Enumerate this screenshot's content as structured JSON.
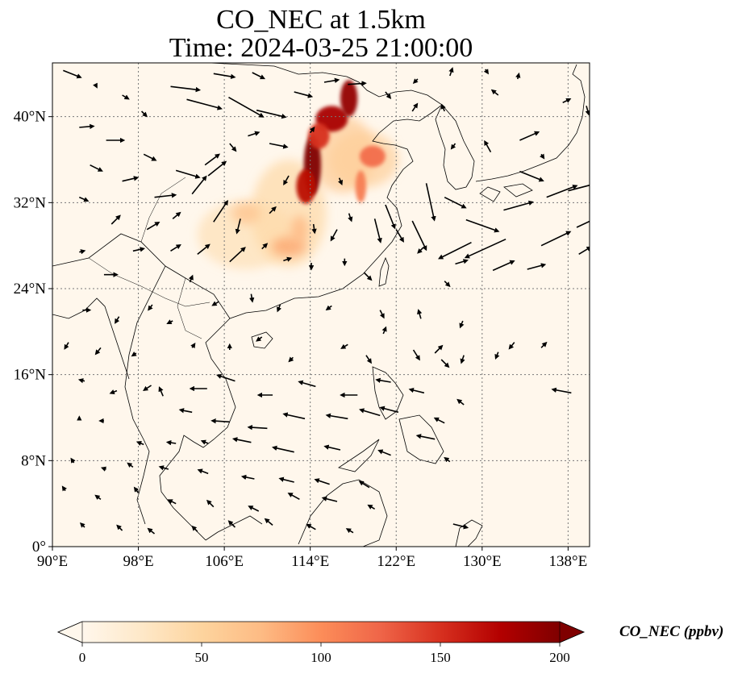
{
  "title": {
    "line1": "CO_NEC at 1.5km",
    "line2": "Time: 2024-03-25 21:00:00"
  },
  "map": {
    "projection": "PlateCarree",
    "lon_range": [
      90,
      140
    ],
    "lat_range": [
      0,
      45
    ],
    "gridlines": "dotted",
    "lon_ticks": [
      {
        "value": 90,
        "label": "90°E"
      },
      {
        "value": 98,
        "label": "98°E"
      },
      {
        "value": 106,
        "label": "106°E"
      },
      {
        "value": 114,
        "label": "114°E"
      },
      {
        "value": 122,
        "label": "122°E"
      },
      {
        "value": 130,
        "label": "130°E"
      },
      {
        "value": 138,
        "label": "138°E"
      }
    ],
    "lat_ticks": [
      {
        "value": 0,
        "label": "0°"
      },
      {
        "value": 8,
        "label": "8°N"
      },
      {
        "value": 16,
        "label": "16°N"
      },
      {
        "value": 24,
        "label": "24°N"
      },
      {
        "value": 32,
        "label": "32°N"
      },
      {
        "value": 40,
        "label": "40°N"
      }
    ],
    "plumes": [
      {
        "lon": 108,
        "lat": 29,
        "rx": 4.5,
        "ry": 3.2,
        "ppbv": 35
      },
      {
        "lon": 112,
        "lat": 31,
        "rx": 3.5,
        "ry": 5,
        "ppbv": 45
      },
      {
        "lon": 117,
        "lat": 36.5,
        "rx": 3,
        "ry": 3.6,
        "ppbv": 60
      },
      {
        "lon": 119,
        "lat": 36,
        "rx": 3.2,
        "ry": 2.6,
        "ppbv": 55
      },
      {
        "lon": 114.2,
        "lat": 35.5,
        "rx": 0.8,
        "ry": 2.8,
        "ppbv": 200
      },
      {
        "lon": 113.6,
        "lat": 33.5,
        "rx": 0.9,
        "ry": 1.6,
        "ppbv": 170
      },
      {
        "lon": 116,
        "lat": 39.8,
        "rx": 1.5,
        "ry": 1.2,
        "ppbv": 180
      },
      {
        "lon": 117.6,
        "lat": 41.7,
        "rx": 0.8,
        "ry": 1.7,
        "ppbv": 190
      },
      {
        "lon": 114.8,
        "lat": 38.2,
        "rx": 1,
        "ry": 1.2,
        "ppbv": 150
      },
      {
        "lon": 119.8,
        "lat": 36.3,
        "rx": 1.2,
        "ry": 1,
        "ppbv": 120
      },
      {
        "lon": 118.7,
        "lat": 33.5,
        "rx": 0.5,
        "ry": 1.5,
        "ppbv": 110
      },
      {
        "lon": 112,
        "lat": 27.9,
        "rx": 1.6,
        "ry": 0.9,
        "ppbv": 90
      },
      {
        "lon": 113,
        "lat": 29.5,
        "rx": 0.8,
        "ry": 1.3,
        "ppbv": 80
      },
      {
        "lon": 108,
        "lat": 31,
        "rx": 1.3,
        "ry": 1,
        "ppbv": 70
      }
    ],
    "wind_vectors": [
      {
        "lon": 91,
        "lat": 44.3,
        "u": 1.5,
        "v": -0.6
      },
      {
        "lon": 94,
        "lat": 43,
        "u": 0.1,
        "v": -0.2
      },
      {
        "lon": 96.5,
        "lat": 42,
        "u": 0.5,
        "v": -0.3
      },
      {
        "lon": 98.3,
        "lat": 40.5,
        "u": 0.4,
        "v": -0.4
      },
      {
        "lon": 101,
        "lat": 42.8,
        "u": 2.5,
        "v": -0.3
      },
      {
        "lon": 102.5,
        "lat": 41.6,
        "u": 3,
        "v": -0.8
      },
      {
        "lon": 105,
        "lat": 44,
        "u": 1.8,
        "v": -0.3
      },
      {
        "lon": 108.6,
        "lat": 44.1,
        "u": 1,
        "v": -0.5
      },
      {
        "lon": 106.4,
        "lat": 41.8,
        "u": 3,
        "v": -1.7
      },
      {
        "lon": 109,
        "lat": 40.6,
        "u": 2.5,
        "v": -0.6
      },
      {
        "lon": 112.5,
        "lat": 42.3,
        "u": 1.5,
        "v": -0.4
      },
      {
        "lon": 115.3,
        "lat": 43.2,
        "u": 1.2,
        "v": 0.2
      },
      {
        "lon": 117.5,
        "lat": 43,
        "u": 1.5,
        "v": 0.1
      },
      {
        "lon": 92.5,
        "lat": 39,
        "u": 1.2,
        "v": 0.1
      },
      {
        "lon": 95,
        "lat": 37.8,
        "u": 1.5,
        "v": 0
      },
      {
        "lon": 98.5,
        "lat": 36.5,
        "u": 1,
        "v": -0.5
      },
      {
        "lon": 101.5,
        "lat": 35,
        "u": 2,
        "v": -0.6
      },
      {
        "lon": 104.2,
        "lat": 35.5,
        "u": 1.2,
        "v": 0.9
      },
      {
        "lon": 104.5,
        "lat": 34.5,
        "u": 1.5,
        "v": 1.2
      },
      {
        "lon": 106.5,
        "lat": 37.5,
        "u": 0.5,
        "v": -0.6
      },
      {
        "lon": 108.2,
        "lat": 38.2,
        "u": 0.9,
        "v": 0.3
      },
      {
        "lon": 110.2,
        "lat": 37.5,
        "u": 1.5,
        "v": -0.3
      },
      {
        "lon": 93.5,
        "lat": 35.5,
        "u": 1,
        "v": -0.5
      },
      {
        "lon": 96.5,
        "lat": 34,
        "u": 1.3,
        "v": 0.3
      },
      {
        "lon": 99.5,
        "lat": 32.5,
        "u": 1.8,
        "v": 0.2
      },
      {
        "lon": 103,
        "lat": 32.8,
        "u": 1.2,
        "v": 1.5
      },
      {
        "lon": 105,
        "lat": 30.2,
        "u": 1.2,
        "v": 1.8
      },
      {
        "lon": 101.2,
        "lat": 30.5,
        "u": 0.6,
        "v": 0.5
      },
      {
        "lon": 92.5,
        "lat": 32.5,
        "u": 0.7,
        "v": -0.3
      },
      {
        "lon": 95.5,
        "lat": 30,
        "u": 0.7,
        "v": 0.7
      },
      {
        "lon": 98.8,
        "lat": 29.5,
        "u": 1,
        "v": 0.6
      },
      {
        "lon": 107.5,
        "lat": 30.5,
        "u": -0.3,
        "v": -1.2
      },
      {
        "lon": 110.2,
        "lat": 31,
        "u": 0.5,
        "v": 0.5
      },
      {
        "lon": 117.6,
        "lat": 31,
        "u": 0.2,
        "v": -0.6
      },
      {
        "lon": 120,
        "lat": 30.5,
        "u": 0.5,
        "v": -2
      },
      {
        "lon": 122,
        "lat": 29.5,
        "u": 0.6,
        "v": -1
      },
      {
        "lon": 123.5,
        "lat": 30.3,
        "u": 1.2,
        "v": -2.5
      },
      {
        "lon": 121,
        "lat": 31.8,
        "u": 0.8,
        "v": -2
      },
      {
        "lon": 124.8,
        "lat": 33.8,
        "u": 0.7,
        "v": -3.2
      },
      {
        "lon": 126.5,
        "lat": 32.5,
        "u": 1.8,
        "v": -0.9
      },
      {
        "lon": 128.5,
        "lat": 30.4,
        "u": 2.8,
        "v": -1
      },
      {
        "lon": 129,
        "lat": 28.3,
        "u": -2.8,
        "v": -1.4
      },
      {
        "lon": 132.2,
        "lat": 28.6,
        "u": -3.5,
        "v": -1.6
      },
      {
        "lon": 132,
        "lat": 31.3,
        "u": 2.5,
        "v": 0.7
      },
      {
        "lon": 136,
        "lat": 32.5,
        "u": 2.6,
        "v": 1
      },
      {
        "lon": 138,
        "lat": 33.1,
        "u": 2.7,
        "v": 0.7
      },
      {
        "lon": 133.5,
        "lat": 34.9,
        "u": 2,
        "v": -0.8
      },
      {
        "lon": 135.5,
        "lat": 28,
        "u": 2.5,
        "v": 1.2
      },
      {
        "lon": 138.8,
        "lat": 29.7,
        "u": 1.5,
        "v": 0.7
      },
      {
        "lon": 139,
        "lat": 27.2,
        "u": 1,
        "v": 0.6
      },
      {
        "lon": 131,
        "lat": 25.7,
        "u": 1.8,
        "v": 0.8
      },
      {
        "lon": 134.2,
        "lat": 25.8,
        "u": 1.5,
        "v": 0.4
      },
      {
        "lon": 127.5,
        "lat": 26.3,
        "u": 1,
        "v": 0.3
      },
      {
        "lon": 124.5,
        "lat": 27.8,
        "u": -0.4,
        "v": -0.4
      },
      {
        "lon": 126.5,
        "lat": 24.7,
        "u": 0.4,
        "v": -0.4
      },
      {
        "lon": 130.8,
        "lat": 36.7,
        "u": -0.5,
        "v": 0.9
      },
      {
        "lon": 133.5,
        "lat": 37.8,
        "u": 1.6,
        "v": 0.7
      },
      {
        "lon": 135.5,
        "lat": 36.5,
        "u": 0.2,
        "v": -0.3
      },
      {
        "lon": 137.5,
        "lat": 41.3,
        "u": 0.6,
        "v": 0.3
      },
      {
        "lon": 139.7,
        "lat": 41,
        "u": 0.2,
        "v": -0.7
      },
      {
        "lon": 127.5,
        "lat": 37.5,
        "u": -0.3,
        "v": -0.4
      },
      {
        "lon": 131.5,
        "lat": 42,
        "u": -0.5,
        "v": 0.4
      },
      {
        "lon": 126.5,
        "lat": 40.5,
        "u": -0.2,
        "v": 0.5
      },
      {
        "lon": 123.5,
        "lat": 40.5,
        "u": 0.4,
        "v": 0.6
      },
      {
        "lon": 121,
        "lat": 42.3,
        "u": 0.4,
        "v": -0.5
      },
      {
        "lon": 124,
        "lat": 43.5,
        "u": -0.3,
        "v": -0.3
      },
      {
        "lon": 127,
        "lat": 43.8,
        "u": 0.2,
        "v": 0.6
      },
      {
        "lon": 130.3,
        "lat": 44.4,
        "u": 0.2,
        "v": -0.3
      },
      {
        "lon": 133.3,
        "lat": 43.5,
        "u": 0.1,
        "v": 0.4
      },
      {
        "lon": 114,
        "lat": 38.5,
        "u": 0.3,
        "v": 0.4
      },
      {
        "lon": 112,
        "lat": 34.5,
        "u": -0.4,
        "v": -0.7
      },
      {
        "lon": 116.7,
        "lat": 34.3,
        "u": 0.2,
        "v": -0.5
      },
      {
        "lon": 114.3,
        "lat": 30,
        "u": 0.1,
        "v": -0.7
      },
      {
        "lon": 116.5,
        "lat": 29.5,
        "u": -0.5,
        "v": -0.9
      },
      {
        "lon": 106.5,
        "lat": 26.5,
        "u": 1.3,
        "v": 1.2
      },
      {
        "lon": 103.5,
        "lat": 27.2,
        "u": 1,
        "v": 0.8
      },
      {
        "lon": 101,
        "lat": 27.5,
        "u": 0.8,
        "v": 0.5
      },
      {
        "lon": 97.5,
        "lat": 27.5,
        "u": 0.9,
        "v": 0.2
      },
      {
        "lon": 94.8,
        "lat": 25.3,
        "u": 1.1,
        "v": 0
      },
      {
        "lon": 92.5,
        "lat": 27.4,
        "u": 0.4,
        "v": 0.1
      },
      {
        "lon": 109.5,
        "lat": 27.7,
        "u": 0.4,
        "v": 0.4
      },
      {
        "lon": 111.5,
        "lat": 26.6,
        "u": 0.6,
        "v": 0.2
      },
      {
        "lon": 114.1,
        "lat": 26.4,
        "u": 0,
        "v": -0.5
      },
      {
        "lon": 117.2,
        "lat": 26.8,
        "u": 0,
        "v": -0.5
      },
      {
        "lon": 119,
        "lat": 25.5,
        "u": 0.6,
        "v": -0.6
      },
      {
        "lon": 102.8,
        "lat": 24.6,
        "u": 0.2,
        "v": 0.5
      },
      {
        "lon": 105.5,
        "lat": 22.8,
        "u": -0.5,
        "v": -0.3
      },
      {
        "lon": 108.5,
        "lat": 23.5,
        "u": 0.1,
        "v": -0.6
      },
      {
        "lon": 111.2,
        "lat": 22.5,
        "u": -0.2,
        "v": -0.5
      },
      {
        "lon": 116,
        "lat": 22.4,
        "u": -0.4,
        "v": -0.3
      },
      {
        "lon": 120.5,
        "lat": 22,
        "u": 0.3,
        "v": -0.6
      },
      {
        "lon": 124.3,
        "lat": 21.2,
        "u": -0.2,
        "v": 0.7
      },
      {
        "lon": 128.2,
        "lat": 21,
        "u": -0.2,
        "v": -0.5
      },
      {
        "lon": 92.8,
        "lat": 22,
        "u": 0.6,
        "v": 0
      },
      {
        "lon": 96.2,
        "lat": 21.4,
        "u": -0.3,
        "v": -0.5
      },
      {
        "lon": 99.3,
        "lat": 22.5,
        "u": -0.3,
        "v": -0.4
      },
      {
        "lon": 101.2,
        "lat": 21,
        "u": -0.4,
        "v": -0.2
      },
      {
        "lon": 94.5,
        "lat": 18.5,
        "u": -0.4,
        "v": -0.5
      },
      {
        "lon": 97.8,
        "lat": 18,
        "u": -0.3,
        "v": -0.2
      },
      {
        "lon": 103,
        "lat": 18.5,
        "u": 0.2,
        "v": 0.3
      },
      {
        "lon": 106.5,
        "lat": 18.3,
        "u": 0,
        "v": 0.4
      },
      {
        "lon": 109.5,
        "lat": 19.5,
        "u": -0.4,
        "v": -0.3
      },
      {
        "lon": 112.4,
        "lat": 17.6,
        "u": -0.3,
        "v": -0.3
      },
      {
        "lon": 117.5,
        "lat": 18.8,
        "u": -0.5,
        "v": -0.3
      },
      {
        "lon": 119.2,
        "lat": 17.8,
        "u": 0.4,
        "v": -0.6
      },
      {
        "lon": 120.8,
        "lat": 19.8,
        "u": 0.2,
        "v": 0.5
      },
      {
        "lon": 123.6,
        "lat": 18.3,
        "u": 0.5,
        "v": -0.8
      },
      {
        "lon": 125.6,
        "lat": 18,
        "u": 0.6,
        "v": 0.6
      },
      {
        "lon": 126.2,
        "lat": 17.4,
        "u": 0.6,
        "v": -0.6
      },
      {
        "lon": 128.3,
        "lat": 17.8,
        "u": -0.2,
        "v": -0.6
      },
      {
        "lon": 131.5,
        "lat": 18.1,
        "u": -0.2,
        "v": -0.5
      },
      {
        "lon": 133,
        "lat": 19,
        "u": -0.4,
        "v": -0.5
      },
      {
        "lon": 135.5,
        "lat": 18.5,
        "u": 0.4,
        "v": 0.4
      },
      {
        "lon": 91.5,
        "lat": 19,
        "u": -0.3,
        "v": -0.5
      },
      {
        "lon": 93,
        "lat": 15.4,
        "u": -0.4,
        "v": 0.1
      },
      {
        "lon": 96,
        "lat": 14.5,
        "u": -0.5,
        "v": -0.2
      },
      {
        "lon": 99.2,
        "lat": 15,
        "u": -0.6,
        "v": -0.4
      },
      {
        "lon": 100.3,
        "lat": 14,
        "u": -0.3,
        "v": 0.7
      },
      {
        "lon": 104.4,
        "lat": 14.7,
        "u": -1.4,
        "v": 0
      },
      {
        "lon": 107,
        "lat": 15.4,
        "u": -1.5,
        "v": 0.5
      },
      {
        "lon": 110.5,
        "lat": 14.1,
        "u": -1.2,
        "v": 0
      },
      {
        "lon": 114.5,
        "lat": 14.9,
        "u": -1.4,
        "v": 0.4
      },
      {
        "lon": 118.4,
        "lat": 14.1,
        "u": -1.4,
        "v": 0
      },
      {
        "lon": 121.5,
        "lat": 15.3,
        "u": -1.2,
        "v": 0.2
      },
      {
        "lon": 124.6,
        "lat": 14.3,
        "u": -1.2,
        "v": 0.3
      },
      {
        "lon": 128.3,
        "lat": 13.2,
        "u": -0.5,
        "v": 0.4
      },
      {
        "lon": 138.3,
        "lat": 14.3,
        "u": -1.6,
        "v": 0.3
      },
      {
        "lon": 103,
        "lat": 12.5,
        "u": -1,
        "v": 0.2
      },
      {
        "lon": 106.5,
        "lat": 11.6,
        "u": -1.5,
        "v": 0.1
      },
      {
        "lon": 110,
        "lat": 11,
        "u": -1.6,
        "v": 0.1
      },
      {
        "lon": 113.5,
        "lat": 11.9,
        "u": -1.8,
        "v": 0.4
      },
      {
        "lon": 117.5,
        "lat": 11.9,
        "u": -1.8,
        "v": 0.3
      },
      {
        "lon": 120.5,
        "lat": 12.2,
        "u": -1.7,
        "v": 0.5
      },
      {
        "lon": 122.2,
        "lat": 12.5,
        "u": -1.5,
        "v": 0.4
      },
      {
        "lon": 125.6,
        "lat": 10,
        "u": -1.5,
        "v": 0.3
      },
      {
        "lon": 126.5,
        "lat": 11.5,
        "u": -0.8,
        "v": 0.4
      },
      {
        "lon": 94.8,
        "lat": 11.7,
        "u": -0.3,
        "v": 0
      },
      {
        "lon": 92.5,
        "lat": 11.8,
        "u": 0,
        "v": 0.2
      },
      {
        "lon": 98.5,
        "lat": 9.5,
        "u": -0.5,
        "v": 0.2
      },
      {
        "lon": 101.5,
        "lat": 9.6,
        "u": -0.7,
        "v": 0.1
      },
      {
        "lon": 104.5,
        "lat": 9.6,
        "u": -0.5,
        "v": 0.2
      },
      {
        "lon": 108.5,
        "lat": 9.7,
        "u": -1.5,
        "v": 0.3
      },
      {
        "lon": 112.5,
        "lat": 8.8,
        "u": -1.8,
        "v": 0.4
      },
      {
        "lon": 116.8,
        "lat": 9,
        "u": -1.3,
        "v": 0.3
      },
      {
        "lon": 121.5,
        "lat": 8.5,
        "u": -1,
        "v": 0.4
      },
      {
        "lon": 127,
        "lat": 7.9,
        "u": -0.4,
        "v": 0.3
      },
      {
        "lon": 92,
        "lat": 7.8,
        "u": -0.2,
        "v": 0.3
      },
      {
        "lon": 95,
        "lat": 7.2,
        "u": -0.3,
        "v": 0.1
      },
      {
        "lon": 97.5,
        "lat": 7.4,
        "u": -0.4,
        "v": 0.3
      },
      {
        "lon": 100.8,
        "lat": 7.2,
        "u": -0.7,
        "v": 0.2
      },
      {
        "lon": 104.5,
        "lat": 6.8,
        "u": -0.8,
        "v": 0.3
      },
      {
        "lon": 108.8,
        "lat": 6.3,
        "u": -1,
        "v": 0.2
      },
      {
        "lon": 112.5,
        "lat": 6,
        "u": -1.2,
        "v": 0.3
      },
      {
        "lon": 115.8,
        "lat": 5.8,
        "u": -1.2,
        "v": 0.4
      },
      {
        "lon": 119.5,
        "lat": 5.5,
        "u": -0.8,
        "v": 0.5
      },
      {
        "lon": 91.2,
        "lat": 5.2,
        "u": -0.2,
        "v": 0.3
      },
      {
        "lon": 94.5,
        "lat": 4.4,
        "u": -0.4,
        "v": 0.3
      },
      {
        "lon": 98,
        "lat": 5,
        "u": -0.3,
        "v": 0.4
      },
      {
        "lon": 101.5,
        "lat": 4,
        "u": -0.6,
        "v": 0.3
      },
      {
        "lon": 105,
        "lat": 3.7,
        "u": -0.5,
        "v": 0.5
      },
      {
        "lon": 109.2,
        "lat": 3.3,
        "u": -0.8,
        "v": 0.4
      },
      {
        "lon": 113,
        "lat": 4.4,
        "u": -0.9,
        "v": 0.5
      },
      {
        "lon": 116.5,
        "lat": 4.2,
        "u": -1.2,
        "v": 0.3
      },
      {
        "lon": 120,
        "lat": 3.5,
        "u": -0.5,
        "v": 0.3
      },
      {
        "lon": 93,
        "lat": 1.8,
        "u": -0.3,
        "v": 0.3
      },
      {
        "lon": 96.5,
        "lat": 1.5,
        "u": -0.4,
        "v": 0.4
      },
      {
        "lon": 99.5,
        "lat": 1.2,
        "u": -0.5,
        "v": 0.4
      },
      {
        "lon": 103.5,
        "lat": 1.4,
        "u": -0.4,
        "v": 0.4
      },
      {
        "lon": 107,
        "lat": 1.8,
        "u": -0.5,
        "v": 0.5
      },
      {
        "lon": 110.5,
        "lat": 2,
        "u": -0.6,
        "v": 0.5
      },
      {
        "lon": 114.5,
        "lat": 1.6,
        "u": -0.7,
        "v": 0.4
      },
      {
        "lon": 118,
        "lat": 1.3,
        "u": -0.5,
        "v": 0.3
      },
      {
        "lon": 127.3,
        "lat": 2.1,
        "u": 1.2,
        "v": -0.3
      }
    ]
  },
  "colorbar": {
    "label": "CO_NEC (ppbv)",
    "colormap": "OrRd",
    "range": [
      0,
      200
    ],
    "extend": "both",
    "ticks": [
      "0",
      "50",
      "100",
      "150",
      "200"
    ],
    "colors": [
      "#fff7ec",
      "#fee8c8",
      "#fdd49e",
      "#fdbb84",
      "#fc8d59",
      "#ef6548",
      "#d7301f",
      "#b30000",
      "#7f0000"
    ]
  }
}
